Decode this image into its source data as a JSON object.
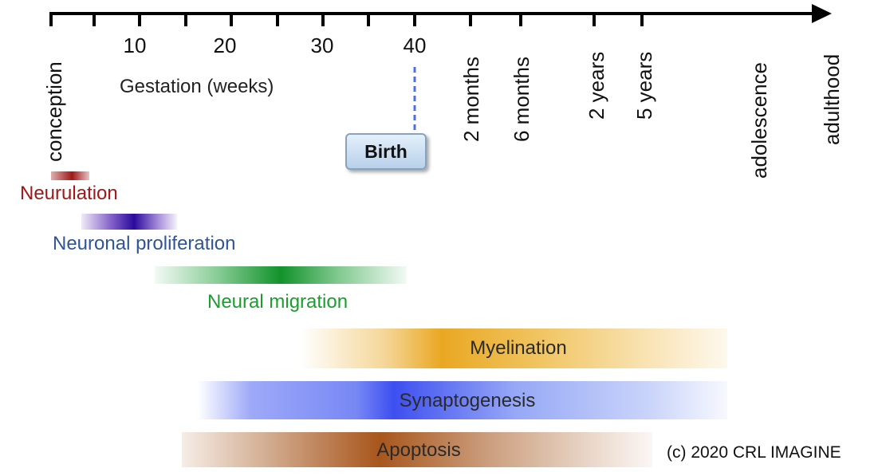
{
  "timeline": {
    "tick_numbers": [
      "10",
      "20",
      "30",
      "40"
    ],
    "gestation_label": "Gestation (weeks)",
    "milestones": [
      "conception",
      "2 months",
      "6 months",
      "2 years",
      "5 years",
      "adolescence",
      "adulthood"
    ],
    "birth_label": "Birth"
  },
  "processes": [
    {
      "label": "Neurulation",
      "color": "#a01818"
    },
    {
      "label": "Neuronal proliferation",
      "color": "#3a00a8"
    },
    {
      "label": "Neural migration",
      "color": "#139a2e"
    },
    {
      "label": "Myelination",
      "color": "#e8a317"
    },
    {
      "label": "Synaptogenesis",
      "color": "#3d55f0"
    },
    {
      "label": "Apoptosis",
      "color": "#a04e12"
    }
  ],
  "colors": {
    "neurulation_label": "#a01818",
    "proliferation_label": "#2f5597",
    "migration_label": "#1a9e2e",
    "birth_dash": "#4f6fe0"
  },
  "copyright": "(c) 2020 CRL IMAGINE"
}
